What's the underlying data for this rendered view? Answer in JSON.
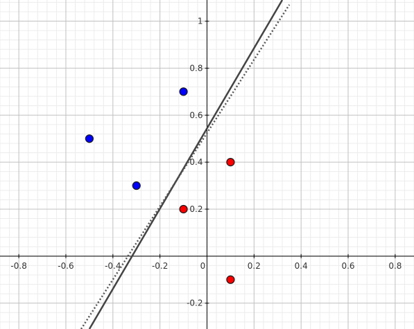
{
  "chart_data": {
    "type": "scatter",
    "title": "",
    "xlabel": "",
    "ylabel": "",
    "xlim": [
      -0.88,
      0.88
    ],
    "ylim": [
      -0.31,
      1.09
    ],
    "grid": true,
    "x_ticks": [
      -0.8,
      -0.6,
      -0.4,
      -0.2,
      0,
      0.2,
      0.4,
      0.6,
      0.8
    ],
    "x_tick_labels": [
      "-0.8",
      "-0.6",
      "-0.4",
      "-0.2",
      "0",
      "0.2",
      "0.4",
      "0.6",
      "0.8"
    ],
    "y_ticks": [
      -0.2,
      0.2,
      0.4,
      0.6,
      0.8,
      1
    ],
    "y_tick_labels": [
      "-0.2",
      "0.2",
      "0.4",
      "0.6",
      "0.8",
      "1"
    ],
    "series": [
      {
        "color": "#0000ff",
        "marker": "circle",
        "points": [
          [
            -0.5,
            0.5
          ],
          [
            -0.3,
            0.3
          ],
          [
            -0.1,
            0.7
          ]
        ]
      },
      {
        "color": "#ff0000",
        "marker": "circle",
        "points": [
          [
            -0.1,
            0.2
          ],
          [
            0.1,
            0.4
          ],
          [
            0.1,
            -0.1
          ]
        ]
      }
    ],
    "lines": [
      {
        "style": "solid",
        "color": "#444444",
        "from": [
          -0.5,
          -0.31
        ],
        "to": [
          0.32,
          1.09
        ]
      },
      {
        "style": "dotted",
        "color": "#555555",
        "from": [
          -0.535,
          -0.31
        ],
        "to": [
          0.35,
          1.07
        ]
      }
    ]
  }
}
